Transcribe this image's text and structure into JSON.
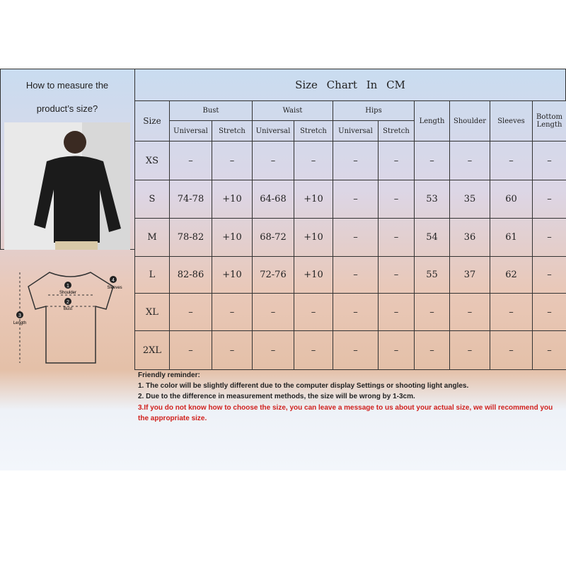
{
  "left_panel": {
    "heading": [
      "How to measure the",
      "product’s size?"
    ],
    "diagram": [
      {
        "number": "1",
        "label": "Shoulder"
      },
      {
        "number": "2",
        "label": "Bust"
      },
      {
        "number": "3",
        "label": "Length"
      },
      {
        "number": "4",
        "label": "Sleeves"
      }
    ]
  },
  "table": {
    "title": "Size Chart In CM",
    "headers": [
      "Size",
      "Bust",
      "Waist",
      "Hips",
      "Length",
      "Shoulder",
      "Sleeves",
      "Bottom Length"
    ],
    "subheaders": [
      "Universal",
      "Stretch",
      "Universal",
      "Stretch",
      "Universal",
      "Stretch"
    ],
    "rows": [
      [
        "XS",
        "–",
        "–",
        "–",
        "–",
        "–",
        "–",
        "–",
        "–",
        "–",
        "–"
      ],
      [
        "S",
        "74-78",
        "+10",
        "64-68",
        "+10",
        "–",
        "–",
        "53",
        "35",
        "60",
        "–"
      ],
      [
        "M",
        "78-82",
        "+10",
        "68-72",
        "+10",
        "–",
        "–",
        "54",
        "36",
        "61",
        "–"
      ],
      [
        "L",
        "82-86",
        "+10",
        "72-76",
        "+10",
        "–",
        "–",
        "55",
        "37",
        "62",
        "–"
      ],
      [
        "XL",
        "–",
        "–",
        "–",
        "–",
        "–",
        "–",
        "–",
        "–",
        "–",
        "–"
      ],
      [
        "2XL",
        "–",
        "–",
        "–",
        "–",
        "–",
        "–",
        "–",
        "–",
        "–",
        "–"
      ]
    ]
  },
  "reminder": {
    "title": "Friendly reminder:",
    "notes": [
      "1. The color will be slightly different due to the computer display Settings or shooting light angles.",
      "2. Due to the difference in measurement methods, the size will be wrong by 1-3cm.",
      "3.If you do not know how to choose the size, you can leave a message to us about your actual size, we will recommend you the appropriate size."
    ]
  }
}
